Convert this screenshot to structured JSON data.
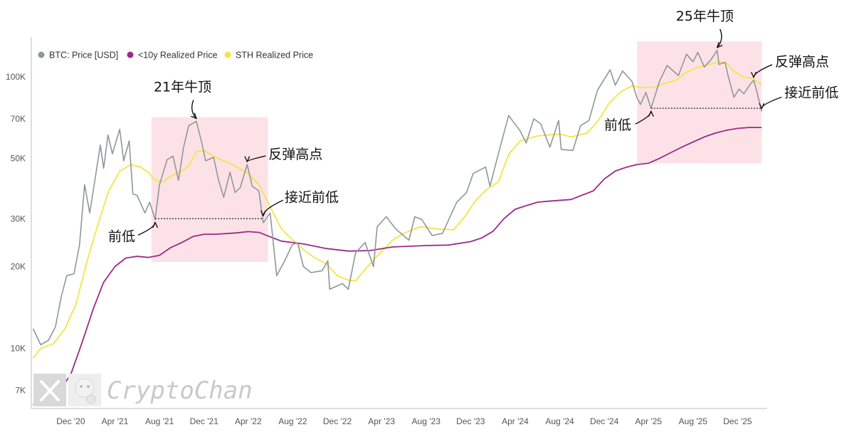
{
  "chart_data": {
    "type": "line",
    "yscale": "log",
    "ylim": [
      6000,
      140000
    ],
    "xlim": [
      "2020-08-15",
      "2026-02-20"
    ],
    "yticks": [
      {
        "value": 7000,
        "label": "7K"
      },
      {
        "value": 10000,
        "label": "10K"
      },
      {
        "value": 20000,
        "label": "20K"
      },
      {
        "value": 30000,
        "label": "30K"
      },
      {
        "value": 50000,
        "label": "50K"
      },
      {
        "value": 70000,
        "label": "70K"
      },
      {
        "value": 100000,
        "label": "100K"
      }
    ],
    "xticks": [
      {
        "date": "2020-12-01",
        "label": "Dec '20"
      },
      {
        "date": "2021-04-01",
        "label": "Apr '21"
      },
      {
        "date": "2021-08-01",
        "label": "Aug '21"
      },
      {
        "date": "2021-12-01",
        "label": "Dec '21"
      },
      {
        "date": "2022-04-01",
        "label": "Apr '22"
      },
      {
        "date": "2022-08-01",
        "label": "Aug '22"
      },
      {
        "date": "2022-12-01",
        "label": "Dec '22"
      },
      {
        "date": "2023-04-01",
        "label": "Apr '23"
      },
      {
        "date": "2023-08-01",
        "label": "Aug '23"
      },
      {
        "date": "2023-12-01",
        "label": "Dec '23"
      },
      {
        "date": "2024-04-01",
        "label": "Apr '24"
      },
      {
        "date": "2024-08-01",
        "label": "Aug '24"
      },
      {
        "date": "2024-12-01",
        "label": "Dec '24"
      },
      {
        "date": "2025-04-01",
        "label": "Apr '25"
      },
      {
        "date": "2025-08-01",
        "label": "Aug '25"
      },
      {
        "date": "2025-12-01",
        "label": "Dec '25"
      }
    ],
    "legend": {
      "placement": "top-left"
    },
    "series": [
      {
        "name": "BTC: Price [USD]",
        "color": "#8e979c",
        "points": [
          [
            "2020-08-20",
            11800
          ],
          [
            "2020-09-10",
            10300
          ],
          [
            "2020-10-01",
            10700
          ],
          [
            "2020-10-20",
            12000
          ],
          [
            "2020-11-05",
            15500
          ],
          [
            "2020-11-20",
            18500
          ],
          [
            "2020-12-10",
            18800
          ],
          [
            "2020-12-25",
            24000
          ],
          [
            "2021-01-08",
            40000
          ],
          [
            "2021-01-22",
            31500
          ],
          [
            "2021-02-08",
            44000
          ],
          [
            "2021-02-20",
            56000
          ],
          [
            "2021-03-01",
            46000
          ],
          [
            "2021-03-13",
            61000
          ],
          [
            "2021-03-25",
            52000
          ],
          [
            "2021-04-14",
            64000
          ],
          [
            "2021-04-25",
            49000
          ],
          [
            "2021-05-10",
            58000
          ],
          [
            "2021-05-20",
            37000
          ],
          [
            "2021-06-01",
            36500
          ],
          [
            "2021-06-22",
            31500
          ],
          [
            "2021-07-05",
            34500
          ],
          [
            "2021-07-20",
            29800
          ],
          [
            "2021-08-01",
            40000
          ],
          [
            "2021-08-22",
            49500
          ],
          [
            "2021-09-07",
            51000
          ],
          [
            "2021-09-22",
            41500
          ],
          [
            "2021-10-06",
            55000
          ],
          [
            "2021-10-20",
            66000
          ],
          [
            "2021-11-10",
            68500
          ],
          [
            "2021-11-25",
            57000
          ],
          [
            "2021-12-05",
            49000
          ],
          [
            "2021-12-27",
            50500
          ],
          [
            "2022-01-10",
            41500
          ],
          [
            "2022-01-24",
            36000
          ],
          [
            "2022-02-10",
            44500
          ],
          [
            "2022-02-24",
            37500
          ],
          [
            "2022-03-10",
            39000
          ],
          [
            "2022-03-29",
            47500
          ],
          [
            "2022-04-12",
            39500
          ],
          [
            "2022-04-30",
            38000
          ],
          [
            "2022-05-12",
            29000
          ],
          [
            "2022-05-31",
            31500
          ],
          [
            "2022-06-18",
            18500
          ],
          [
            "2022-07-10",
            21000
          ],
          [
            "2022-07-30",
            24000
          ],
          [
            "2022-08-14",
            24500
          ],
          [
            "2022-08-30",
            20000
          ],
          [
            "2022-09-20",
            19000
          ],
          [
            "2022-10-20",
            19300
          ],
          [
            "2022-11-05",
            21000
          ],
          [
            "2022-11-10",
            16500
          ],
          [
            "2022-12-15",
            17300
          ],
          [
            "2022-12-31",
            16500
          ],
          [
            "2023-01-20",
            22500
          ],
          [
            "2023-02-15",
            24500
          ],
          [
            "2023-03-10",
            20000
          ],
          [
            "2023-03-20",
            28000
          ],
          [
            "2023-04-14",
            30500
          ],
          [
            "2023-05-10",
            27500
          ],
          [
            "2023-06-15",
            25000
          ],
          [
            "2023-07-01",
            30500
          ],
          [
            "2023-07-20",
            29800
          ],
          [
            "2023-08-18",
            26000
          ],
          [
            "2023-09-15",
            26500
          ],
          [
            "2023-10-24",
            34500
          ],
          [
            "2023-11-20",
            37500
          ],
          [
            "2023-12-08",
            44000
          ],
          [
            "2024-01-11",
            46500
          ],
          [
            "2024-01-23",
            39500
          ],
          [
            "2024-02-15",
            52000
          ],
          [
            "2024-03-14",
            72000
          ],
          [
            "2024-04-15",
            63000
          ],
          [
            "2024-05-01",
            57000
          ],
          [
            "2024-05-22",
            70000
          ],
          [
            "2024-06-10",
            67000
          ],
          [
            "2024-07-05",
            55000
          ],
          [
            "2024-07-29",
            69000
          ],
          [
            "2024-08-05",
            54000
          ],
          [
            "2024-09-06",
            53500
          ],
          [
            "2024-09-27",
            66000
          ],
          [
            "2024-10-20",
            69000
          ],
          [
            "2024-11-12",
            89000
          ],
          [
            "2024-12-17",
            106000
          ],
          [
            "2024-12-31",
            93000
          ],
          [
            "2025-01-20",
            105000
          ],
          [
            "2025-02-15",
            96000
          ],
          [
            "2025-02-28",
            84000
          ],
          [
            "2025-03-10",
            79000
          ],
          [
            "2025-03-25",
            87500
          ],
          [
            "2025-04-08",
            76500
          ],
          [
            "2025-05-01",
            96000
          ],
          [
            "2025-05-22",
            110000
          ],
          [
            "2025-06-22",
            101000
          ],
          [
            "2025-07-14",
            121000
          ],
          [
            "2025-08-01",
            113500
          ],
          [
            "2025-08-14",
            123000
          ],
          [
            "2025-09-01",
            108500
          ],
          [
            "2025-09-20",
            116000
          ],
          [
            "2025-10-06",
            125000
          ],
          [
            "2025-10-11",
            111000
          ],
          [
            "2025-10-28",
            113000
          ],
          [
            "2025-11-04",
            102000
          ],
          [
            "2025-11-21",
            84000
          ],
          [
            "2025-12-05",
            90000
          ],
          [
            "2025-12-18",
            86500
          ],
          [
            "2026-01-05",
            94000
          ],
          [
            "2026-01-14",
            97000
          ],
          [
            "2026-01-22",
            89000
          ],
          [
            "2026-02-01",
            78000
          ],
          [
            "2026-02-05",
            74500
          ]
        ]
      },
      {
        "name": "<10y Realized Price",
        "color": "#9c2a87",
        "points": [
          [
            "2020-08-20",
            6200
          ],
          [
            "2020-10-01",
            6500
          ],
          [
            "2020-11-01",
            7000
          ],
          [
            "2020-12-01",
            8000
          ],
          [
            "2021-01-01",
            10500
          ],
          [
            "2021-02-01",
            14000
          ],
          [
            "2021-03-01",
            17500
          ],
          [
            "2021-04-01",
            20000
          ],
          [
            "2021-05-01",
            21500
          ],
          [
            "2021-06-01",
            21800
          ],
          [
            "2021-07-01",
            21600
          ],
          [
            "2021-08-01",
            22000
          ],
          [
            "2021-09-01",
            23500
          ],
          [
            "2021-10-01",
            24500
          ],
          [
            "2021-11-01",
            25800
          ],
          [
            "2021-12-01",
            26300
          ],
          [
            "2022-01-01",
            26300
          ],
          [
            "2022-03-01",
            26600
          ],
          [
            "2022-04-01",
            26900
          ],
          [
            "2022-05-01",
            26700
          ],
          [
            "2022-06-01",
            25700
          ],
          [
            "2022-07-01",
            24800
          ],
          [
            "2022-09-01",
            24200
          ],
          [
            "2022-11-01",
            23300
          ],
          [
            "2023-01-01",
            22800
          ],
          [
            "2023-03-01",
            22900
          ],
          [
            "2023-05-01",
            23600
          ],
          [
            "2023-08-01",
            23900
          ],
          [
            "2023-10-01",
            24000
          ],
          [
            "2023-12-01",
            24700
          ],
          [
            "2024-01-01",
            25500
          ],
          [
            "2024-02-01",
            27000
          ],
          [
            "2024-03-01",
            30000
          ],
          [
            "2024-04-01",
            32500
          ],
          [
            "2024-05-01",
            33500
          ],
          [
            "2024-06-01",
            34500
          ],
          [
            "2024-07-01",
            34800
          ],
          [
            "2024-09-01",
            35300
          ],
          [
            "2024-11-01",
            38000
          ],
          [
            "2024-12-01",
            42000
          ],
          [
            "2025-01-01",
            45000
          ],
          [
            "2025-02-01",
            46500
          ],
          [
            "2025-03-01",
            47500
          ],
          [
            "2025-04-01",
            48000
          ],
          [
            "2025-05-01",
            50000
          ],
          [
            "2025-06-01",
            52500
          ],
          [
            "2025-07-01",
            55000
          ],
          [
            "2025-08-01",
            57500
          ],
          [
            "2025-09-01",
            60000
          ],
          [
            "2025-10-01",
            62000
          ],
          [
            "2025-11-01",
            63500
          ],
          [
            "2025-12-01",
            64500
          ],
          [
            "2026-01-01",
            65000
          ],
          [
            "2026-02-05",
            65000
          ]
        ]
      },
      {
        "name": "STH Realized Price",
        "color": "#f4e542",
        "points": [
          [
            "2020-08-20",
            9200
          ],
          [
            "2020-09-10",
            10000
          ],
          [
            "2020-10-15",
            10400
          ],
          [
            "2020-11-15",
            11800
          ],
          [
            "2020-12-15",
            14500
          ],
          [
            "2021-01-15",
            21000
          ],
          [
            "2021-02-15",
            29000
          ],
          [
            "2021-03-15",
            38000
          ],
          [
            "2021-04-15",
            45000
          ],
          [
            "2021-05-15",
            47500
          ],
          [
            "2021-06-10",
            46500
          ],
          [
            "2021-07-01",
            44500
          ],
          [
            "2021-07-20",
            41500
          ],
          [
            "2021-08-10",
            41000
          ],
          [
            "2021-09-01",
            43000
          ],
          [
            "2021-10-01",
            45000
          ],
          [
            "2021-10-20",
            47000
          ],
          [
            "2021-11-10",
            53000
          ],
          [
            "2021-12-01",
            53500
          ],
          [
            "2022-01-01",
            50500
          ],
          [
            "2022-02-01",
            48500
          ],
          [
            "2022-03-01",
            46500
          ],
          [
            "2022-04-01",
            44000
          ],
          [
            "2022-05-01",
            40000
          ],
          [
            "2022-06-01",
            33000
          ],
          [
            "2022-07-01",
            27500
          ],
          [
            "2022-08-01",
            25000
          ],
          [
            "2022-09-01",
            23000
          ],
          [
            "2022-10-01",
            21500
          ],
          [
            "2022-11-01",
            20500
          ],
          [
            "2022-12-01",
            18500
          ],
          [
            "2023-01-01",
            17800
          ],
          [
            "2023-01-20",
            17700
          ],
          [
            "2023-02-15",
            19500
          ],
          [
            "2023-03-15",
            21500
          ],
          [
            "2023-05-01",
            25000
          ],
          [
            "2023-06-01",
            26500
          ],
          [
            "2023-07-15",
            28000
          ],
          [
            "2023-09-01",
            27500
          ],
          [
            "2023-10-15",
            27300
          ],
          [
            "2023-11-15",
            30500
          ],
          [
            "2023-12-15",
            35000
          ],
          [
            "2024-01-15",
            38500
          ],
          [
            "2024-02-15",
            41000
          ],
          [
            "2024-03-15",
            52000
          ],
          [
            "2024-04-15",
            58000
          ],
          [
            "2024-06-01",
            60500
          ],
          [
            "2024-08-01",
            61500
          ],
          [
            "2024-09-01",
            60000
          ],
          [
            "2024-10-15",
            62000
          ],
          [
            "2024-11-15",
            69000
          ],
          [
            "2024-12-15",
            80000
          ],
          [
            "2025-01-15",
            88000
          ],
          [
            "2025-02-15",
            92500
          ],
          [
            "2025-03-15",
            91000
          ],
          [
            "2025-04-15",
            91500
          ],
          [
            "2025-05-15",
            94500
          ],
          [
            "2025-06-15",
            97000
          ],
          [
            "2025-07-15",
            104000
          ],
          [
            "2025-08-15",
            108500
          ],
          [
            "2025-09-15",
            111000
          ],
          [
            "2025-10-10",
            113500
          ],
          [
            "2025-11-01",
            112000
          ],
          [
            "2025-11-20",
            105000
          ],
          [
            "2025-12-15",
            100000
          ],
          [
            "2026-01-10",
            98500
          ],
          [
            "2026-02-05",
            93500
          ]
        ]
      }
    ],
    "highlights": [
      {
        "start": "2021-07-10",
        "end": "2022-05-25",
        "low": 20800,
        "high": 71000
      },
      {
        "start": "2025-03-01",
        "end": "2026-02-05",
        "low": 48000,
        "high": 135000
      }
    ],
    "support_lines": [
      {
        "start": "2021-07-20",
        "end": "2022-05-12",
        "value": 30000
      },
      {
        "start": "2025-04-08",
        "end": "2026-02-05",
        "value": 76500
      }
    ],
    "annotations": [
      {
        "text": "21年牛顶",
        "date": "2021-11-10",
        "value": 68500
      },
      {
        "text": "反弹高点",
        "date": "2022-03-29",
        "value": 47500
      },
      {
        "text": "接近前低",
        "date": "2022-05-12",
        "value": 30000
      },
      {
        "text": "前低",
        "date": "2021-07-20",
        "value": 29800
      },
      {
        "text": "25年牛顶",
        "date": "2025-10-06",
        "value": 125000
      },
      {
        "text": "反弹高点",
        "date": "2026-01-14",
        "value": 97000
      },
      {
        "text": "接近前低",
        "date": "2026-02-05",
        "value": 74500
      },
      {
        "text": "前低",
        "date": "2025-04-08",
        "value": 76500
      }
    ]
  },
  "watermark": {
    "text": "CryptoChan",
    "logo_icon": "x-logo-icon",
    "avatar_icon": "avatar-icon"
  }
}
